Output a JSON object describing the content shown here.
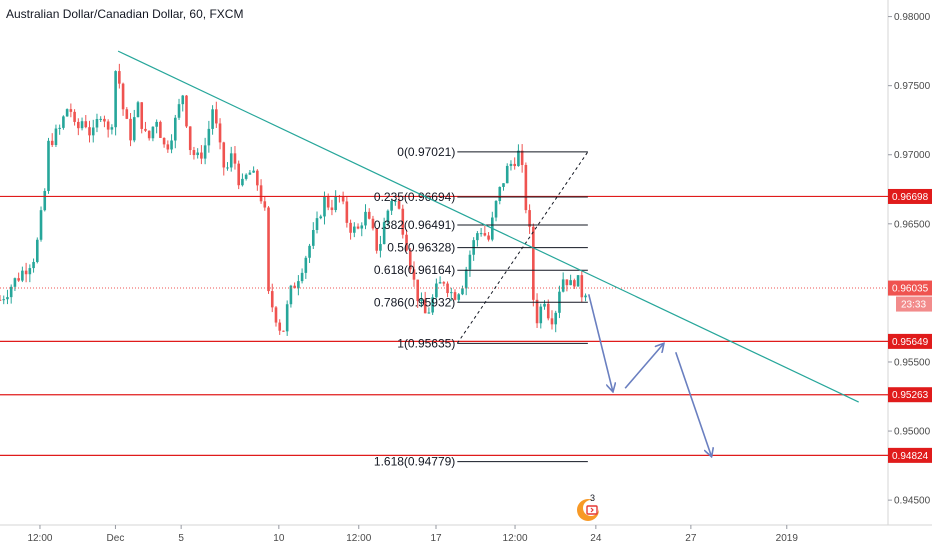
{
  "header": {
    "title": "Australian Dollar/Canadian Dollar, 60, FXCM"
  },
  "colors": {
    "bull": "#26a69a",
    "bear": "#ef5350",
    "level": "#e01b1b",
    "trend": "#26a69a",
    "arrow": "#6a7fc0",
    "fib_line": "#131722",
    "axis_text": "#4a4a4a"
  },
  "countdown": "23:33",
  "logo_badge": "3",
  "chart_data": {
    "type": "candlestick",
    "ylim": [
      0.9432,
      0.9812
    ],
    "xlim": [
      0,
      1
    ],
    "y_ticks": [
      "0.98000",
      "0.97500",
      "0.97000",
      "0.96500",
      "0.95500",
      "0.95000",
      "0.94500"
    ],
    "y_tick_values": [
      0.98,
      0.975,
      0.97,
      0.965,
      0.955,
      0.95,
      0.945
    ],
    "x_ticks": [
      {
        "label": "12:00",
        "x": 0.045
      },
      {
        "label": "Dec",
        "x": 0.13
      },
      {
        "label": "5",
        "x": 0.204
      },
      {
        "label": "10",
        "x": 0.314
      },
      {
        "label": "12:00",
        "x": 0.404
      },
      {
        "label": "17",
        "x": 0.491
      },
      {
        "label": "12:00",
        "x": 0.58
      },
      {
        "label": "24",
        "x": 0.671
      },
      {
        "label": "27",
        "x": 0.778
      },
      {
        "label": "2019",
        "x": 0.886
      }
    ],
    "price_levels": [
      {
        "value": 0.96698,
        "label": "0.96698"
      },
      {
        "value": 0.95649,
        "label": "0.95649"
      },
      {
        "value": 0.95263,
        "label": "0.95263"
      },
      {
        "value": 0.94824,
        "label": "0.94824"
      }
    ],
    "current_price": {
      "value": 0.96035,
      "label": "0.96035"
    },
    "fib_levels": [
      {
        "label": "0(0.97021)",
        "value": 0.97021
      },
      {
        "label": "0.235(0.96694)",
        "value": 0.96694
      },
      {
        "label": "0.382(0.96491)",
        "value": 0.96491
      },
      {
        "label": "0.5(0.96328)",
        "value": 0.96328
      },
      {
        "label": "0.618(0.96164)",
        "value": 0.96164
      },
      {
        "label": "0.786(0.95932)",
        "value": 0.95932
      },
      {
        "label": "1(0.95635)",
        "value": 0.95635
      },
      {
        "label": "1.618(0.94779)",
        "value": 0.94779
      }
    ],
    "fib_x_range": [
      0.515,
      0.662
    ],
    "fib_dashed": {
      "from": [
        0.515,
        0.95635
      ],
      "to": [
        0.662,
        0.97021
      ]
    },
    "trendline": {
      "from": [
        0.133,
        0.9775
      ],
      "to": [
        0.967,
        0.9521
      ]
    },
    "arrows": [
      {
        "from": [
          0.663,
          0.9599
        ],
        "to": [
          0.69,
          0.9529
        ]
      },
      {
        "from": [
          0.704,
          0.9531
        ],
        "to": [
          0.747,
          0.9563
        ]
      },
      {
        "from": [
          0.761,
          0.9557
        ],
        "to": [
          0.801,
          0.9482
        ]
      }
    ],
    "price_path": [
      [
        0.0,
        0.9595
      ],
      [
        0.012,
        0.9605
      ],
      [
        0.026,
        0.9616
      ],
      [
        0.04,
        0.9628
      ],
      [
        0.05,
        0.967
      ],
      [
        0.055,
        0.971
      ],
      [
        0.066,
        0.9716
      ],
      [
        0.078,
        0.9738
      ],
      [
        0.085,
        0.9715
      ],
      [
        0.094,
        0.9727
      ],
      [
        0.104,
        0.9712
      ],
      [
        0.115,
        0.9735
      ],
      [
        0.124,
        0.9709
      ],
      [
        0.131,
        0.9768
      ],
      [
        0.138,
        0.9735
      ],
      [
        0.146,
        0.9712
      ],
      [
        0.155,
        0.9735
      ],
      [
        0.166,
        0.9708
      ],
      [
        0.176,
        0.9728
      ],
      [
        0.186,
        0.9703
      ],
      [
        0.198,
        0.9725
      ],
      [
        0.206,
        0.9745
      ],
      [
        0.214,
        0.9706
      ],
      [
        0.222,
        0.9696
      ],
      [
        0.232,
        0.9708
      ],
      [
        0.24,
        0.9736
      ],
      [
        0.246,
        0.9708
      ],
      [
        0.254,
        0.9686
      ],
      [
        0.262,
        0.9701
      ],
      [
        0.272,
        0.9675
      ],
      [
        0.28,
        0.9688
      ],
      [
        0.29,
        0.9679
      ],
      [
        0.298,
        0.966
      ],
      [
        0.302,
        0.9598
      ],
      [
        0.31,
        0.9585
      ],
      [
        0.318,
        0.957
      ],
      [
        0.326,
        0.9598
      ],
      [
        0.336,
        0.9613
      ],
      [
        0.346,
        0.963
      ],
      [
        0.356,
        0.9646
      ],
      [
        0.364,
        0.9668
      ],
      [
        0.372,
        0.9663
      ],
      [
        0.382,
        0.9669
      ],
      [
        0.392,
        0.965
      ],
      [
        0.402,
        0.9643
      ],
      [
        0.41,
        0.9658
      ],
      [
        0.418,
        0.9646
      ],
      [
        0.426,
        0.963
      ],
      [
        0.434,
        0.9654
      ],
      [
        0.442,
        0.9671
      ],
      [
        0.45,
        0.9658
      ],
      [
        0.458,
        0.9636
      ],
      [
        0.466,
        0.9608
      ],
      [
        0.474,
        0.959
      ],
      [
        0.48,
        0.9583
      ],
      [
        0.49,
        0.96
      ],
      [
        0.5,
        0.961
      ],
      [
        0.51,
        0.9598
      ],
      [
        0.52,
        0.9606
      ],
      [
        0.53,
        0.963
      ],
      [
        0.54,
        0.9648
      ],
      [
        0.55,
        0.9638
      ],
      [
        0.56,
        0.9668
      ],
      [
        0.57,
        0.9688
      ],
      [
        0.58,
        0.9698
      ],
      [
        0.586,
        0.9702
      ],
      [
        0.59,
        0.9672
      ],
      [
        0.596,
        0.9648
      ],
      [
        0.6,
        0.9598
      ],
      [
        0.606,
        0.9578
      ],
      [
        0.612,
        0.96
      ],
      [
        0.618,
        0.9585
      ],
      [
        0.624,
        0.9582
      ],
      [
        0.63,
        0.9604
      ],
      [
        0.636,
        0.9614
      ],
      [
        0.642,
        0.9604
      ],
      [
        0.648,
        0.9612
      ],
      [
        0.655,
        0.96
      ],
      [
        0.66,
        0.9603
      ]
    ]
  }
}
